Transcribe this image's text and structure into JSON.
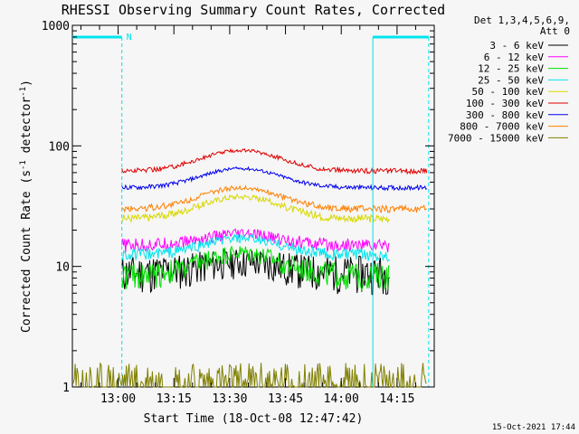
{
  "chart_data": {
    "type": "line",
    "title": "RHESSI Observing Summary Count Rates, Corrected",
    "xlabel": "Start Time (18-Oct-08 12:47:42)",
    "ylabel_parts": [
      "Corrected Count Rate (s",
      "-1",
      " detector",
      "-1",
      ")"
    ],
    "yscale": "log",
    "ylim": [
      1,
      1000
    ],
    "yticks": [
      1,
      10,
      100,
      1000
    ],
    "ytick_labels": [
      "1",
      "10",
      "100",
      "1000"
    ],
    "xlim": [
      "12:47:42",
      "14:25:00"
    ],
    "xticks": [
      "13:00",
      "13:15",
      "13:30",
      "13:45",
      "14:00",
      "14:15"
    ],
    "flags": {
      "color": "#00e5ee",
      "label": "N",
      "night": [
        [
          "12:47:42",
          "13:01:00"
        ],
        [
          "14:08:30",
          "14:23:30"
        ]
      ]
    },
    "legend_header": [
      "Det 1,3,4,5,6,9,",
      "Att 0"
    ],
    "legend_position": "top-right",
    "series": [
      {
        "name": "3 - 6 keV",
        "color": "#000000",
        "start": "13:01",
        "end": "14:13",
        "offset": 9.0,
        "amp": 2.0,
        "jitter": 3.2
      },
      {
        "name": "6 - 12 keV",
        "color": "#ff00ff",
        "start": "13:01",
        "end": "14:13",
        "offset": 15.0,
        "amp": 3.5,
        "jitter": 2.0
      },
      {
        "name": "12 - 25 keV",
        "color": "#00e000",
        "start": "13:01",
        "end": "14:13",
        "offset": 8.5,
        "amp": 4.5,
        "jitter": 2.2
      },
      {
        "name": "25 - 50 keV",
        "color": "#00e5ee",
        "start": "13:01",
        "end": "14:13",
        "offset": 12.5,
        "amp": 4.5,
        "jitter": 1.5
      },
      {
        "name": "50 - 100 keV",
        "color": "#d8d800",
        "start": "13:01",
        "end": "14:13",
        "offset": 25.0,
        "amp": 13.0,
        "jitter": 2.0
      },
      {
        "name": "100 - 300 keV",
        "color": "#e00000",
        "start": "13:01",
        "end": "14:23",
        "offset": 62.0,
        "amp": 30.0,
        "jitter": 3.0
      },
      {
        "name": "300 - 800 keV",
        "color": "#0000ee",
        "start": "13:01",
        "end": "14:23",
        "offset": 45.0,
        "amp": 20.0,
        "jitter": 2.0
      },
      {
        "name": "800 - 7000 keV",
        "color": "#ff8000",
        "start": "13:01",
        "end": "14:23",
        "offset": 30.0,
        "amp": 15.0,
        "jitter": 2.0
      },
      {
        "name": "7000 - 15000 keV",
        "color": "#808000",
        "start": "12:47:42",
        "end": "14:23",
        "offset": 1.0,
        "amp": 0.0,
        "jitter": 0.6
      }
    ],
    "timestamp": "15-Oct-2021 17:44"
  }
}
